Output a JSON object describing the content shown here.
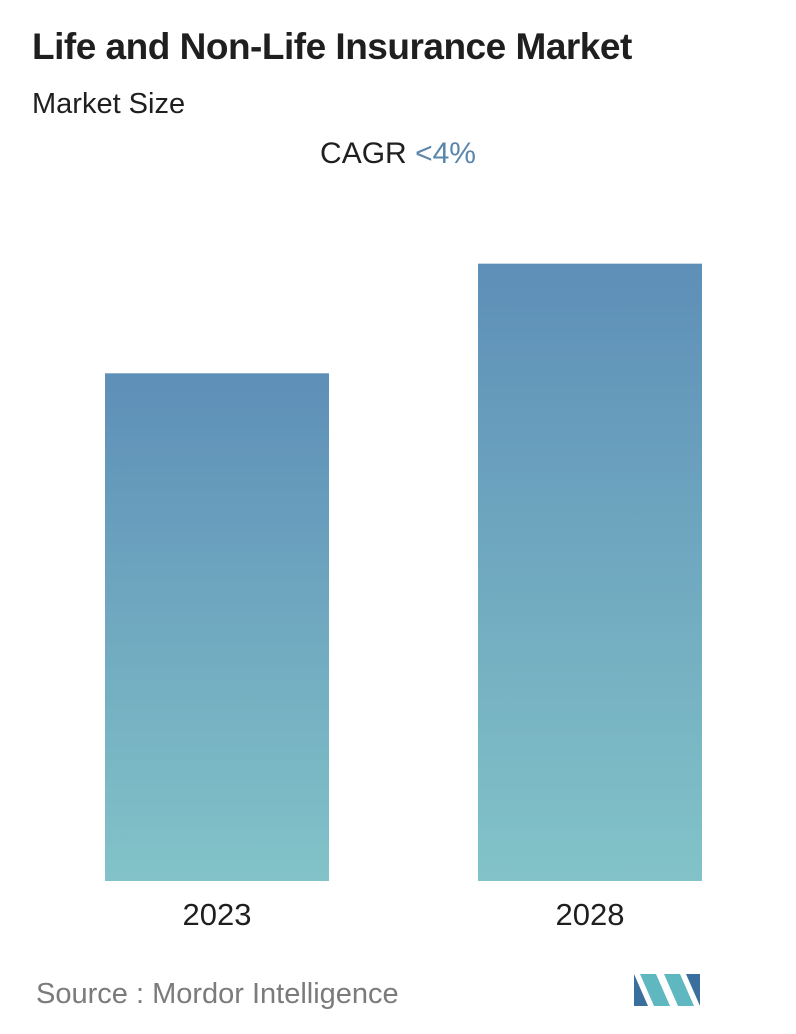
{
  "title": "Life and Non-Life Insurance Market",
  "subtitle": "Market Size",
  "cagr": {
    "label": "CAGR",
    "value": "<4%"
  },
  "chart_data": {
    "type": "bar",
    "categories": [
      "2023",
      "2028"
    ],
    "values": [
      100,
      121.6
    ],
    "ylim": [
      0,
      130
    ],
    "grid": false,
    "legend": "none"
  },
  "colors": {
    "bar_top": "#5e8fb8",
    "bar_bottom": "#82c3c8",
    "accent": "#5a86ad"
  },
  "source": {
    "label": "Source :",
    "name": "Mordor Intelligence"
  },
  "logo": {
    "icon": "mordor-intelligence-logo-icon",
    "colors": [
      "#3a6e9c",
      "#5fb7c0"
    ]
  }
}
